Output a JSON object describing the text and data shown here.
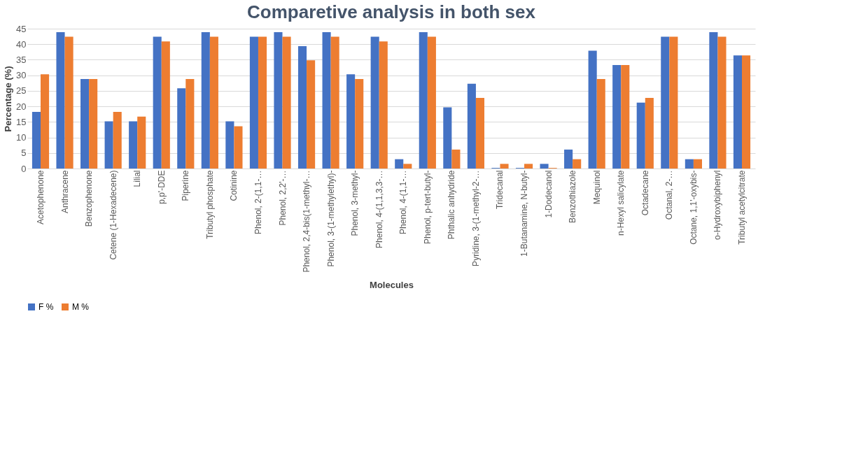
{
  "chart_data": {
    "type": "bar",
    "title": "Comparetive analysis in both sex",
    "xlabel": "Molecules",
    "ylabel": "Percentage (%)",
    "categories": [
      "Acetophenone",
      "Anthracene",
      "Benzophenone",
      "Cetene (1-Hexadecene)",
      "Lilial",
      "p,p'-DDE",
      "Piperine",
      "Tributyl phosphate",
      "Cotinine",
      "Phenol, 2-(1,1-…",
      "Phenol, 2,2'-…",
      "Phenol, 2,4-bis(1-methyl-…",
      "Phenol, 3-(1-methylethyl)-",
      "Phenol, 3-methyl-",
      "Phenol, 4-(1,1,3,3-…",
      "Phenol, 4-(1,1-…",
      "Phenol, p-tert-butyl-",
      "Phthalic anhydride",
      "Pyridine, 3-(1-methyl-2-…",
      "Tridecanal",
      "1-Butanamine, N-butyl-",
      "1-Dodecanol",
      "Benzothiazole",
      "Mequinol",
      "n-Hexyl salicylate",
      "Octadecane",
      "Octanal, 2-…",
      "Octane, 1,1'-oxybis-",
      "o-Hydroxybiphenyl",
      "Tributyl acetylcitrate"
    ],
    "series": [
      {
        "name": "F %",
        "color": "#4472c4",
        "values": [
          18.2,
          43.9,
          28.8,
          15.2,
          15.2,
          42.4,
          25.8,
          43.9,
          15.2,
          42.4,
          43.9,
          39.4,
          43.9,
          30.3,
          42.4,
          3.0,
          43.9,
          19.7,
          27.3,
          0.2,
          0.2,
          1.5,
          6.1,
          37.9,
          33.3,
          21.2,
          42.4,
          3.0,
          43.9,
          36.4
        ]
      },
      {
        "name": "M %",
        "color": "#ed7d31",
        "values": [
          30.3,
          42.4,
          28.8,
          18.2,
          16.7,
          40.9,
          28.8,
          42.4,
          13.6,
          42.4,
          42.4,
          34.8,
          42.4,
          28.8,
          40.9,
          1.5,
          42.4,
          6.1,
          22.7,
          1.5,
          1.5,
          0.2,
          3.0,
          28.8,
          33.3,
          22.7,
          42.4,
          3.0,
          42.4,
          36.4
        ]
      }
    ],
    "ylim": [
      0,
      45
    ],
    "yticks": [
      0,
      5,
      10,
      15,
      20,
      25,
      30,
      35,
      40,
      45
    ],
    "grid": "y",
    "legend": "bottom"
  }
}
